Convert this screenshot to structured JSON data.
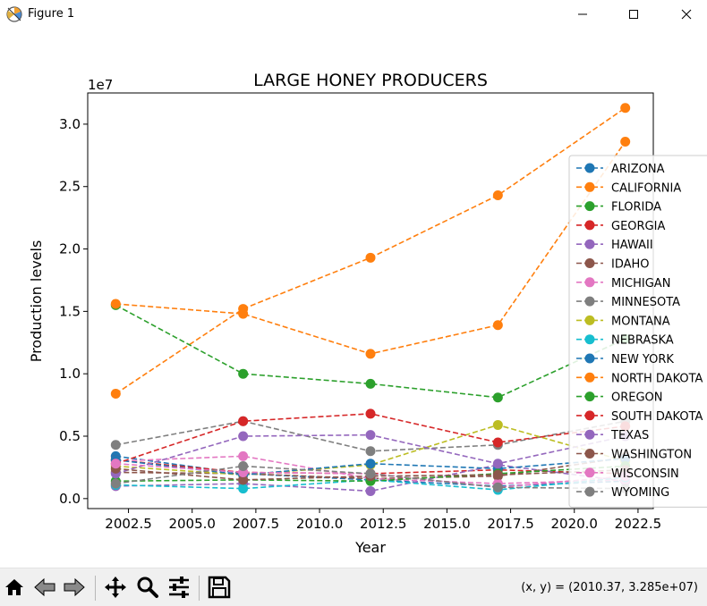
{
  "window": {
    "title": "Figure 1"
  },
  "toolbar": {
    "coords": "(x, y) = (2010.37, 3.285e+07)"
  },
  "chart_data": {
    "type": "line",
    "title": "LARGE HONEY PRODUCERS",
    "xlabel": "Year",
    "ylabel": "Production levels",
    "offset_label": "1e7",
    "x": [
      2002,
      2007,
      2012,
      2017,
      2022
    ],
    "xlim": [
      2000.9,
      2023.1
    ],
    "ylim": [
      -0.08,
      3.25
    ],
    "xticks": [
      2002.5,
      2005.0,
      2007.5,
      2010.0,
      2012.5,
      2015.0,
      2017.5,
      2020.0,
      2022.5
    ],
    "xtick_labels": [
      "2002.5",
      "2005.0",
      "2007.5",
      "2010.0",
      "2012.5",
      "2015.0",
      "2017.5",
      "2020.0",
      "2022.5"
    ],
    "yticks": [
      0.0,
      0.5,
      1.0,
      1.5,
      2.0,
      2.5,
      3.0
    ],
    "ytick_labels": [
      "0.0",
      "0.5",
      "1.0",
      "1.5",
      "2.0",
      "2.5",
      "3.0"
    ],
    "legend_position": "right",
    "series": [
      {
        "name": "ARIZONA",
        "color": "#1f77b4",
        "values": [
          0.34,
          0.2,
          0.15,
          0.1,
          0.14
        ]
      },
      {
        "name": "CALIFORNIA",
        "color": "#ff7f0e",
        "values": [
          0.84,
          1.52,
          1.93,
          2.43,
          3.13
        ]
      },
      {
        "name": "FLORIDA",
        "color": "#2ca02c",
        "values": [
          1.55,
          1.0,
          0.92,
          0.81,
          1.28
        ]
      },
      {
        "name": "GEORGIA",
        "color": "#d62728",
        "values": [
          0.31,
          0.21,
          0.2,
          0.23,
          0.2
        ]
      },
      {
        "name": "HAWAII",
        "color": "#9467bd",
        "values": [
          0.1,
          0.12,
          0.06,
          0.27,
          0.14
        ]
      },
      {
        "name": "IDAHO",
        "color": "#8c564b",
        "values": [
          0.21,
          0.2,
          0.16,
          0.18,
          0.33
        ]
      },
      {
        "name": "MICHIGAN",
        "color": "#e377c2",
        "values": [
          0.3,
          0.34,
          0.16,
          0.12,
          0.15
        ]
      },
      {
        "name": "MINNESOTA",
        "color": "#7f7f7f",
        "values": [
          0.43,
          0.62,
          0.38,
          0.43,
          0.62
        ]
      },
      {
        "name": "MONTANA",
        "color": "#bcbd22",
        "values": [
          0.26,
          0.19,
          0.27,
          0.59,
          0.3
        ]
      },
      {
        "name": "NEBRASKA",
        "color": "#17becf",
        "values": [
          0.11,
          0.08,
          0.15,
          0.07,
          0.17
        ]
      },
      {
        "name": "NEW YORK",
        "color": "#1f77b4",
        "values": [
          0.31,
          0.19,
          0.28,
          0.24,
          0.32
        ]
      },
      {
        "name": "NORTH DAKOTA",
        "color": "#ff7f0e",
        "values": [
          1.56,
          1.48,
          1.16,
          1.39,
          2.86
        ]
      },
      {
        "name": "OREGON",
        "color": "#2ca02c",
        "values": [
          0.14,
          0.15,
          0.14,
          0.2,
          0.26
        ]
      },
      {
        "name": "SOUTH DAKOTA",
        "color": "#d62728",
        "values": [
          0.28,
          0.62,
          0.68,
          0.45,
          0.58
        ]
      },
      {
        "name": "TEXAS",
        "color": "#9467bd",
        "values": [
          0.2,
          0.5,
          0.51,
          0.28,
          0.5
        ]
      },
      {
        "name": "WASHINGTON",
        "color": "#8c564b",
        "values": [
          0.24,
          0.15,
          0.18,
          0.19,
          0.23
        ]
      },
      {
        "name": "WISCONSIN",
        "color": "#e377c2",
        "values": [
          0.28,
          0.21,
          0.2,
          0.09,
          0.18
        ]
      },
      {
        "name": "WYOMING",
        "color": "#7f7f7f",
        "values": [
          0.12,
          0.26,
          0.2,
          0.09,
          0.08
        ]
      }
    ]
  }
}
